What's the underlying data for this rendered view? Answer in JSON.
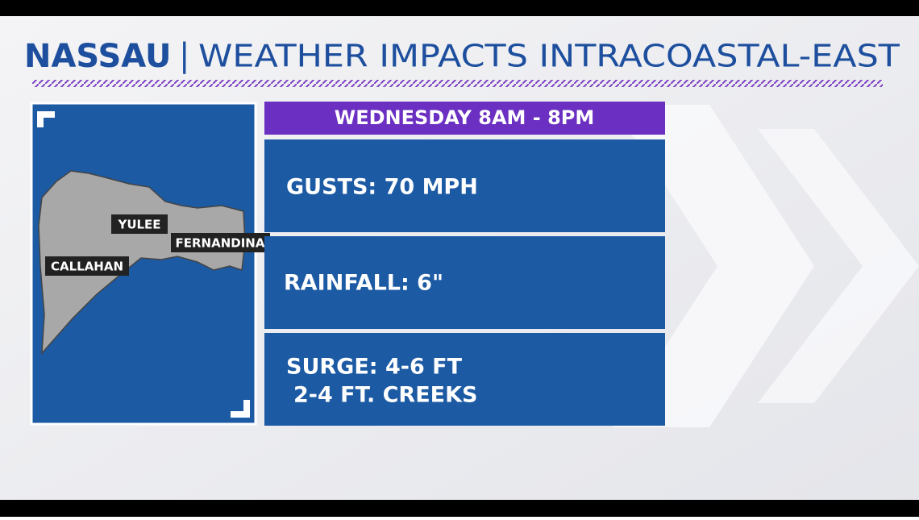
{
  "header": {
    "county": "NASSAU",
    "separator": "|",
    "title": "WEATHER IMPACTS INTRACOASTAL-EAST"
  },
  "map": {
    "labels": [
      "YULEE",
      "FERNANDINA",
      "CALLAHAN"
    ]
  },
  "panel": {
    "heading": "WEDNESDAY 8AM - 8PM",
    "rows": [
      [
        "GUSTS: 70 MPH"
      ],
      [
        "RAINFALL: 6\""
      ],
      [
        "SURGE: 4-6 FT",
        "2-4 FT. CREEKS"
      ]
    ]
  }
}
